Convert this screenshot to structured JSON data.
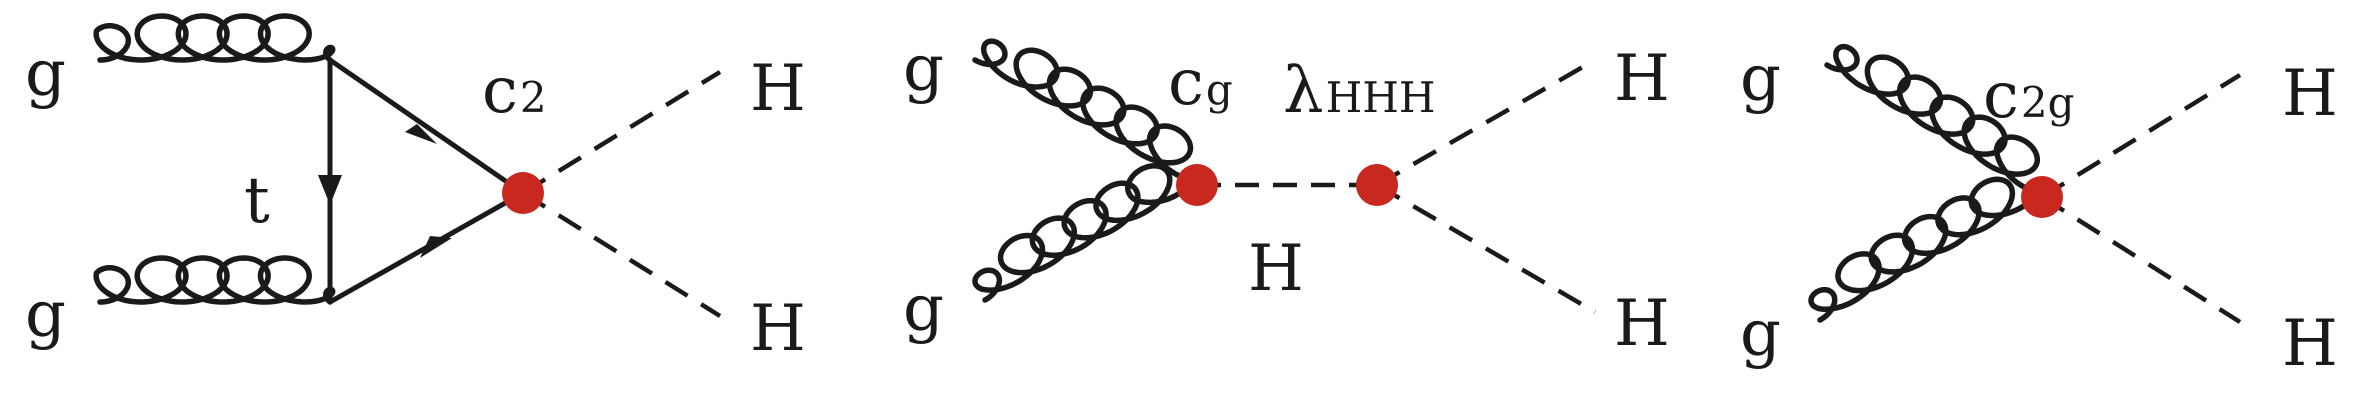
{
  "colors": {
    "line": "#1a1a1a",
    "vertex": "#c8281e"
  },
  "diagrams": [
    {
      "labels": {
        "gluon_in1": "g",
        "gluon_in2": "g",
        "quark": "t",
        "coupling_main": "c",
        "coupling_sub": "2",
        "higgs_out1": "H",
        "higgs_out2": "H"
      }
    },
    {
      "labels": {
        "gluon_in1": "g",
        "gluon_in2": "g",
        "coupling_main": "c",
        "coupling_sub": "g",
        "self_main": "λ",
        "self_sub": "HHH",
        "higgs_prop": "H",
        "higgs_out1": "H",
        "higgs_out2": "H"
      }
    },
    {
      "labels": {
        "gluon_in1": "g",
        "gluon_in2": "g",
        "coupling_main": "c",
        "coupling_sub": "2g",
        "higgs_out1": "H",
        "higgs_out2": "H"
      }
    }
  ]
}
